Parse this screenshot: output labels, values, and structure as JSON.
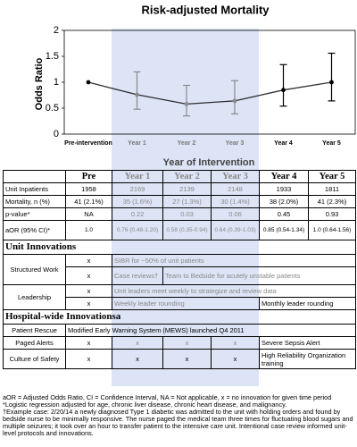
{
  "chart_data": {
    "type": "line",
    "title": "Risk-adjusted Mortality",
    "y_label": "Odds Ratio",
    "x_label": "Year of Intervention",
    "categories": [
      "Pre-intervention",
      "Year 1",
      "Year 2",
      "Year 3",
      "Year 4",
      "Year 5"
    ],
    "series": [
      {
        "color": "#000000",
        "values": [
          1,
          0.76,
          0.58,
          0.64,
          0.85,
          1.0
        ],
        "lower": [
          null,
          0.48,
          0.35,
          0.39,
          0.54,
          0.64
        ],
        "upper": [
          null,
          1.2,
          0.94,
          1.03,
          1.34,
          1.56
        ]
      }
    ],
    "ylim": [
      0,
      2
    ],
    "yticks": [
      0,
      0.5,
      1,
      1.5,
      2
    ]
  },
  "table": {
    "header": [
      "Pre",
      "Year 1",
      "Year 2",
      "Year 3",
      "Year 4",
      "Year 5"
    ],
    "rows": [
      [
        "Unit Inpatients",
        "1958",
        "2169",
        "2139",
        "2148",
        "1933",
        "1811"
      ],
      [
        "Mortality, n (%)",
        "41 (2.1%)",
        "35 (1.6%)",
        "27 (1.3%)",
        "30 (1.4%)",
        "38 (2.0%)",
        "41 (2.3%)"
      ],
      [
        "p-value*",
        "NA",
        "0.22",
        "0.03",
        "0.06",
        "0.45",
        "0.93"
      ],
      [
        "aOR (95% CI)*",
        "1.0",
        "0.76 (0.48-1.20)",
        "0.58 (0.35-0.94)",
        "0.64 (0.39-1.03)",
        "0.85 (0.54-1.34)",
        "1.0 (0.64-1.56)"
      ]
    ]
  },
  "unit_innovations": {
    "title": "Unit Innovations",
    "rows": [
      [
        "Structured Work",
        "x",
        "SIBR for ~50% of unit patients"
      ],
      [
        "x",
        "Case reviews†",
        "Team to Bedside for acutely unstable patients"
      ],
      [
        "Leadership",
        "x",
        "Unit leaders meet weekly to strategize and review data"
      ],
      [
        "x",
        "Weekly leader rounding",
        "Monthly leader rounding"
      ]
    ]
  },
  "hospital_innovations": {
    "title": "Hospital-wide Innovationsa",
    "rows": [
      [
        "Patient Rescue",
        "Modified Early Warning System (MEWS) launched Q4 2011"
      ],
      [
        "Paged Alerts",
        "x",
        "x",
        "x",
        "x",
        "Severe Sepsis Alert"
      ],
      [
        "Culture of Safety",
        "x",
        "x",
        "x",
        "x",
        "High Reliability Organization training"
      ]
    ]
  },
  "footnotes": [
    "aOR = Adjusted Odds Ratio, CI = Confidence Interval, NA = Not applicable, x = no innovation for given time period",
    "*Logistic regression adjusted for age, chronic liver disease, chronic heart disease, and malignancy.",
    "†Example case: 2/20/14 a newly diagnosed Type 1 diabetic was admitted to the unit with holding orders and found by bedside nurse to be minimally responsive. The nurse paged the medical team three times for fluctuating blood sugars and multiple seizures; it took over an hour to transfer patient to the intensive care unit.  Intentional case review informed unit-level protocols and innovations."
  ]
}
